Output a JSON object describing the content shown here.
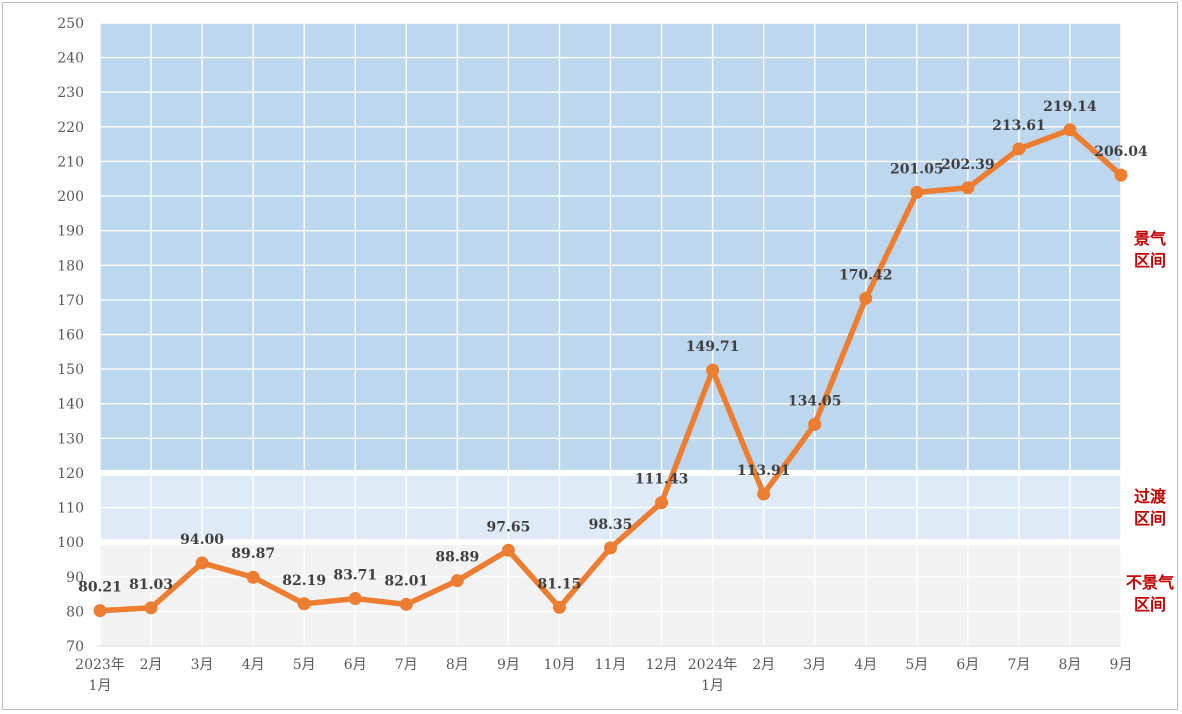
{
  "chart_data": {
    "type": "line",
    "title": "",
    "xlabel": "",
    "ylabel": "",
    "ylim": [
      70,
      250
    ],
    "ytick_step": 10,
    "grid": true,
    "categories": [
      [
        "2023年",
        "1月"
      ],
      [
        "2月"
      ],
      [
        "3月"
      ],
      [
        "4月"
      ],
      [
        "5月"
      ],
      [
        "6月"
      ],
      [
        "7月"
      ],
      [
        "8月"
      ],
      [
        "9月"
      ],
      [
        "10月"
      ],
      [
        "11月"
      ],
      [
        "12月"
      ],
      [
        "2024年",
        "1月"
      ],
      [
        "2月"
      ],
      [
        "3月"
      ],
      [
        "4月"
      ],
      [
        "5月"
      ],
      [
        "6月"
      ],
      [
        "7月"
      ],
      [
        "8月"
      ],
      [
        "9月"
      ]
    ],
    "series": [
      {
        "values": [
          80.21,
          81.03,
          94.0,
          89.87,
          82.19,
          83.71,
          82.01,
          88.89,
          97.65,
          81.15,
          98.35,
          111.43,
          149.71,
          113.91,
          134.05,
          170.42,
          201.05,
          202.39,
          213.61,
          219.14,
          206.04
        ],
        "labels": [
          "80.21",
          "81.03",
          "94.00",
          "89.87",
          "82.19",
          "83.71",
          "82.01",
          "88.89",
          "97.65",
          "81.15",
          "98.35",
          "111.43",
          "149.71",
          "113.91",
          "134.05",
          "170.42",
          "201.05",
          "202.39",
          "213.61",
          "219.14",
          "206.04"
        ],
        "color": "#ED7D31"
      }
    ],
    "bands": [
      {
        "from": 70,
        "to": 100,
        "color": "#F2F2F2",
        "label": [
          "不景气",
          "区间"
        ]
      },
      {
        "from": 100,
        "to": 120,
        "color": "#DEEBF7",
        "label": [
          "过渡",
          "区间"
        ]
      },
      {
        "from": 120,
        "to": 250,
        "color": "#BDD7EE",
        "label": [
          "景气",
          "区间"
        ]
      }
    ],
    "colors": {
      "grid": "#FFFFFF",
      "zone_label": "#C00000",
      "line": "#ED7D31"
    }
  }
}
